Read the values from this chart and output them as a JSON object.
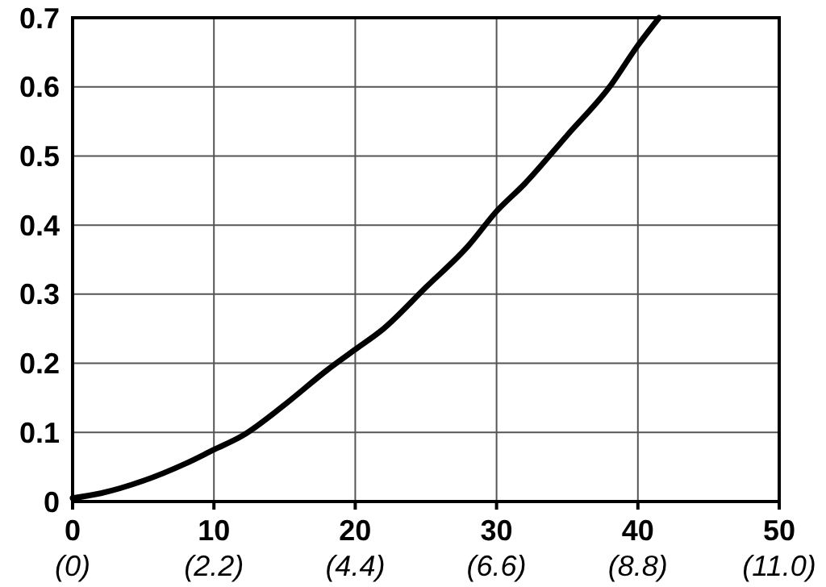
{
  "chart_data": {
    "type": "line",
    "x": [
      0,
      2,
      5,
      8,
      10,
      12,
      15,
      18,
      20,
      22,
      25,
      28,
      30,
      32,
      35,
      38,
      40,
      41.5
    ],
    "series": [
      {
        "color": "#000000",
        "values": [
          0.005,
          0.012,
          0.03,
          0.055,
          0.075,
          0.095,
          0.14,
          0.19,
          0.22,
          0.25,
          0.31,
          0.37,
          0.42,
          0.46,
          0.53,
          0.6,
          0.66,
          0.7
        ]
      }
    ],
    "xlim": [
      0,
      50
    ],
    "ylim": [
      0,
      0.7
    ],
    "xticks": [
      0,
      10,
      20,
      30,
      40,
      50
    ],
    "x2lim": [
      0,
      11
    ],
    "x2ticks": [
      {
        "value": 0,
        "label": "(0)"
      },
      {
        "value": 2.2,
        "label": "(2.2)"
      },
      {
        "value": 4.4,
        "label": "(4.4)"
      },
      {
        "value": 6.6,
        "label": "(6.6)"
      },
      {
        "value": 8.8,
        "label": "(8.8)"
      },
      {
        "value": 11,
        "label": "(11.0)"
      }
    ],
    "yticks": [
      0,
      0.1,
      0.2,
      0.3,
      0.4,
      0.5,
      0.6,
      0.7
    ],
    "grid": true,
    "marker": "none",
    "line_style": "solid"
  }
}
